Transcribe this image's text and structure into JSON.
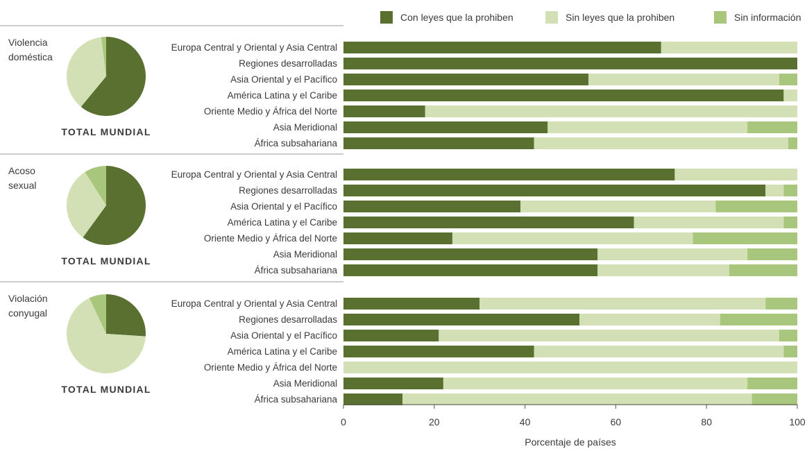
{
  "legend": {
    "items": [
      {
        "label": "Con leyes que la prohiben",
        "color": "#5a7030"
      },
      {
        "label": "Sin leyes que la prohiben",
        "color": "#d3e0b5"
      },
      {
        "label": "Sin información",
        "color": "#a9c77c"
      }
    ]
  },
  "chart_data": {
    "type": "bar",
    "orientation": "horizontal",
    "stacked": true,
    "xlabel": "Porcentaje de países",
    "xlim": [
      0,
      100
    ],
    "xticks": [
      0,
      20,
      40,
      60,
      80,
      100
    ],
    "grid": false,
    "legend_position": "top",
    "series_names": [
      "Con leyes que la prohiben",
      "Sin leyes que la prohiben",
      "Sin información"
    ],
    "colors": [
      "#5a7030",
      "#d3e0b5",
      "#a9c77c"
    ],
    "groups": [
      {
        "title": [
          "Violencia",
          "doméstica"
        ],
        "pie_label": "TOTAL MUNDIAL",
        "pie": [
          61,
          37,
          2
        ],
        "categories": [
          "Europa Central y Oriental y Asia Central",
          "Regiones desarrolladas",
          "Asia Oriental y el Pacífico",
          "América Latina y el Caribe",
          "Oriente Medio y África del Norte",
          "Asia Meridional",
          "África subsahariana"
        ],
        "values": [
          [
            70,
            30,
            0
          ],
          [
            100,
            0,
            0
          ],
          [
            54,
            42,
            4
          ],
          [
            97,
            3,
            0
          ],
          [
            18,
            82,
            0
          ],
          [
            45,
            44,
            11
          ],
          [
            42,
            56,
            2
          ]
        ]
      },
      {
        "title": [
          "Acoso",
          "sexual"
        ],
        "pie_label": "TOTAL MUNDIAL",
        "pie": [
          60,
          31,
          9
        ],
        "categories": [
          "Europa Central y Oriental y Asia Central",
          "Regiones desarrolladas",
          "Asia Oriental y el Pacífico",
          "América Latina y el Caribe",
          "Oriente Medio y África del Norte",
          "Asia Meridional",
          "África subsahariana"
        ],
        "values": [
          [
            73,
            27,
            0
          ],
          [
            93,
            4,
            3
          ],
          [
            39,
            43,
            18
          ],
          [
            64,
            33,
            3
          ],
          [
            24,
            53,
            23
          ],
          [
            56,
            33,
            11
          ],
          [
            56,
            29,
            15
          ]
        ]
      },
      {
        "title": [
          "Violación",
          "conyugal"
        ],
        "pie_label": "TOTAL MUNDIAL",
        "pie": [
          26,
          67,
          7
        ],
        "categories": [
          "Europa Central y Oriental y Asia Central",
          "Regiones desarrolladas",
          "Asia Oriental y el Pacífico",
          "América Latina y el Caribe",
          "Oriente Medio y África del Norte",
          "Asia Meridional",
          "África subsahariana"
        ],
        "values": [
          [
            30,
            63,
            7
          ],
          [
            52,
            31,
            17
          ],
          [
            21,
            75,
            4
          ],
          [
            42,
            55,
            3
          ],
          [
            0,
            100,
            0
          ],
          [
            22,
            67,
            11
          ],
          [
            13,
            77,
            10
          ]
        ]
      }
    ]
  }
}
